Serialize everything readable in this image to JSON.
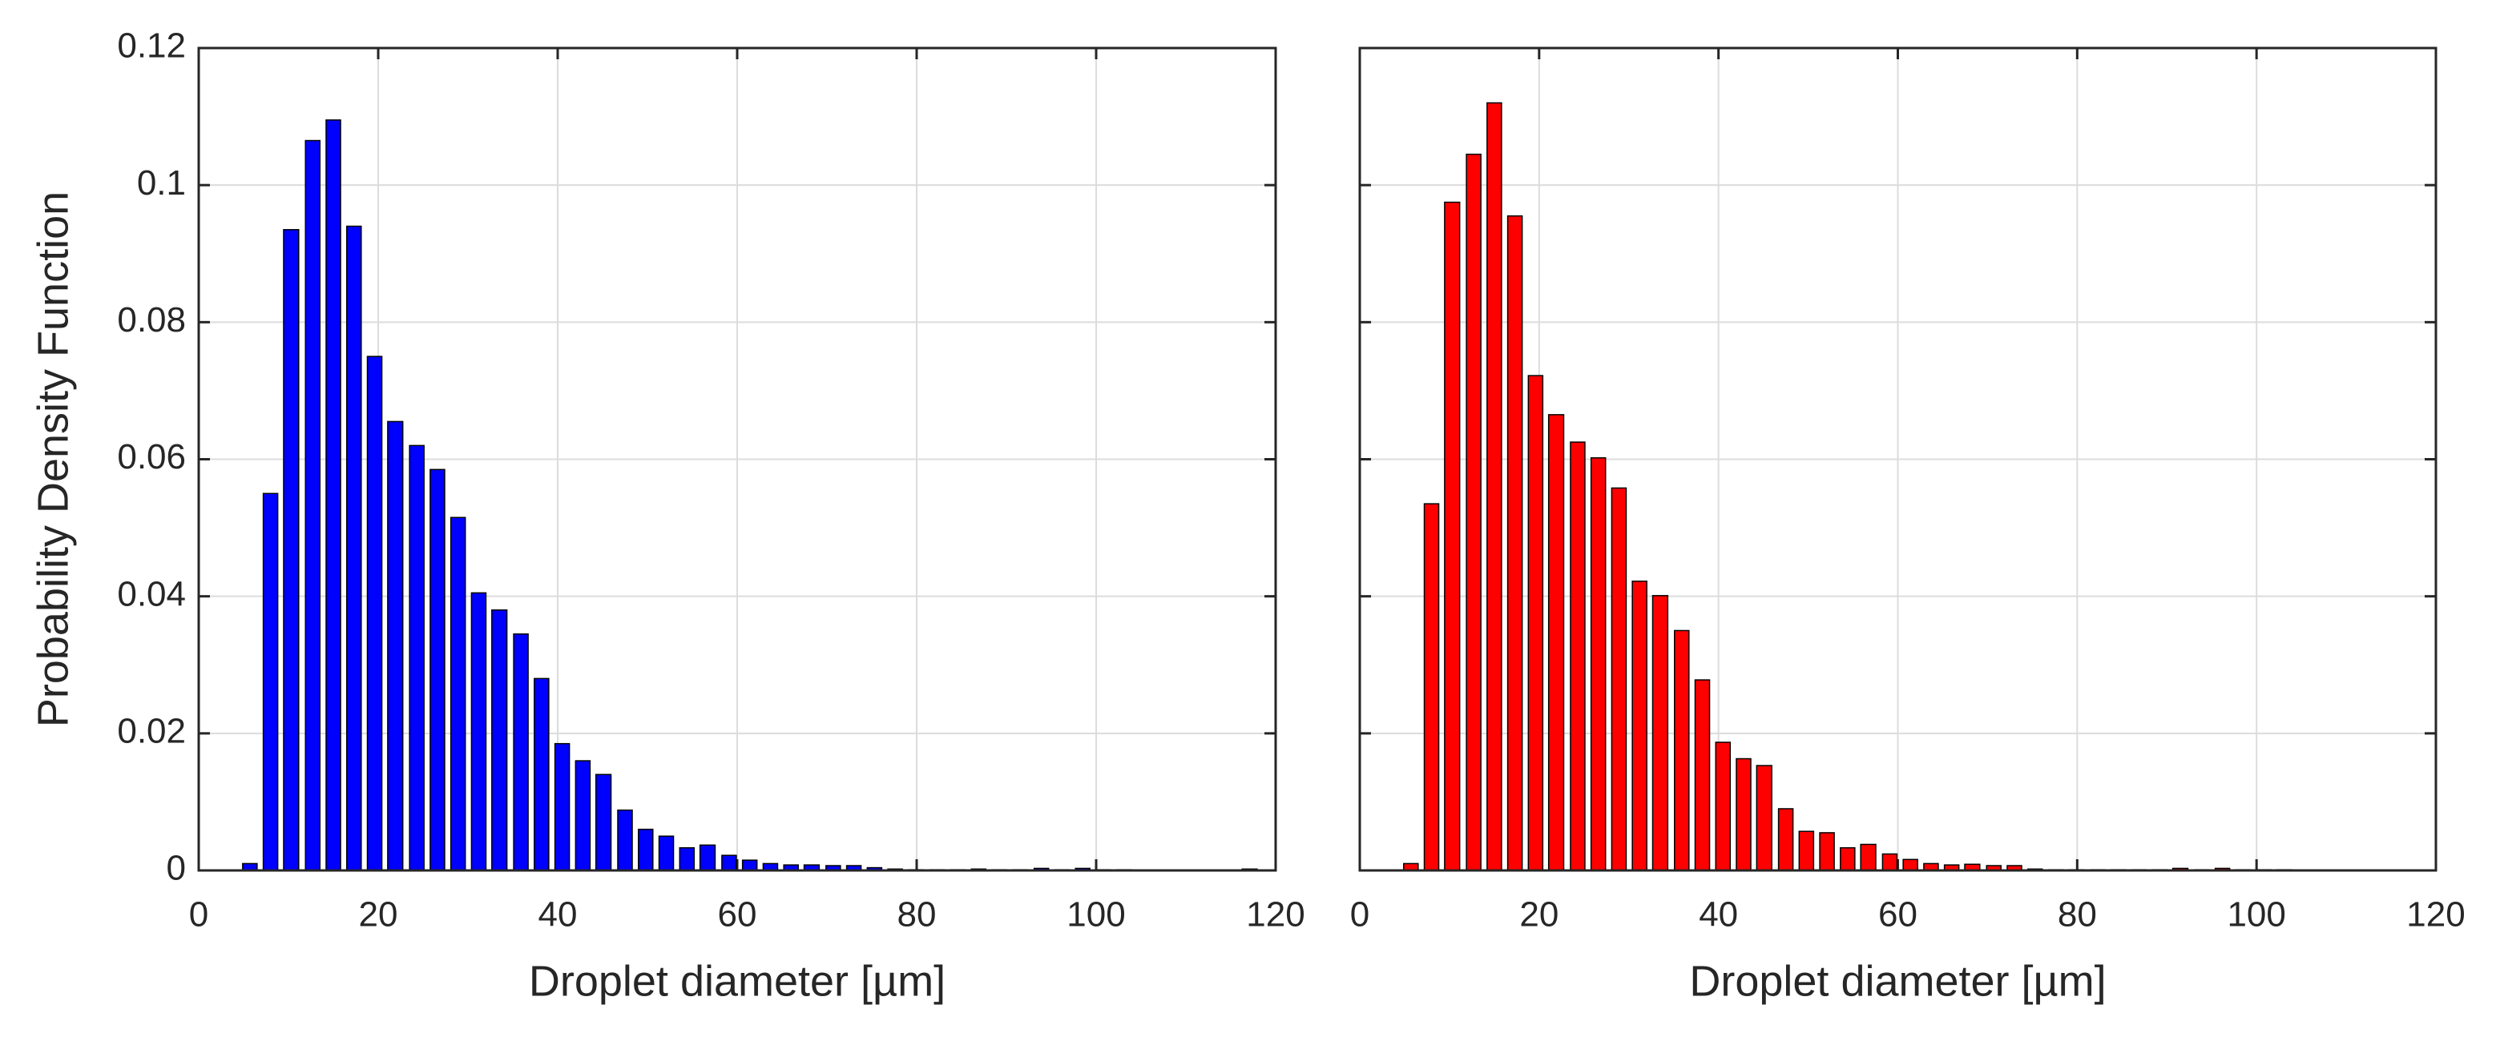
{
  "chart_data": [
    {
      "type": "bar",
      "color": "#0000ff",
      "grid": true,
      "xlabel": "Droplet diameter [µm]",
      "ylabel": "Probability Density Function",
      "xlim": [
        0,
        120
      ],
      "ylim": [
        0,
        0.12
      ],
      "xticks": [
        0,
        20,
        40,
        60,
        80,
        100,
        120
      ],
      "yticks": [
        0,
        0.02,
        0.04,
        0.06,
        0.08,
        0.1,
        0.12
      ],
      "x": [
        5.7,
        8.0,
        10.3,
        12.7,
        15.0,
        17.3,
        19.6,
        21.9,
        24.3,
        26.6,
        28.9,
        31.2,
        33.5,
        35.9,
        38.2,
        40.5,
        42.8,
        45.1,
        47.5,
        49.8,
        52.1,
        54.4,
        56.7,
        59.1,
        61.4,
        63.7,
        66.0,
        68.3,
        70.7,
        73.0,
        75.3,
        77.6,
        79.9,
        82.3,
        84.6,
        86.9,
        89.2,
        91.5,
        93.9,
        96.2,
        98.5,
        100.8,
        103.1,
        105.5,
        107.8,
        110.1,
        112.4,
        114.7,
        117.1
      ],
      "values": [
        0.001,
        0.055,
        0.0935,
        0.1065,
        0.1095,
        0.094,
        0.075,
        0.0655,
        0.062,
        0.0585,
        0.0515,
        0.0405,
        0.038,
        0.0345,
        0.028,
        0.0185,
        0.016,
        0.014,
        0.0088,
        0.006,
        0.005,
        0.0033,
        0.0037,
        0.0022,
        0.0015,
        0.001,
        0.0008,
        0.0008,
        0.0007,
        0.0007,
        0.0004,
        0.0002,
        0.0001,
        0.0001,
        0.0001,
        0.0002,
        0.0001,
        0.0001,
        0.0003,
        0.0001,
        0.0003,
        0.0001,
        0.0001,
        0,
        0,
        0,
        0,
        0,
        0.0002
      ]
    },
    {
      "type": "bar",
      "color": "#ff0000",
      "grid": true,
      "sharey": true,
      "xlabel": "Droplet diameter [µm]",
      "xlim": [
        0,
        120
      ],
      "xticks": [
        0,
        20,
        40,
        60,
        80,
        100,
        120
      ],
      "x": [
        5.7,
        8.0,
        10.3,
        12.7,
        15.0,
        17.3,
        19.6,
        21.9,
        24.3,
        26.6,
        28.9,
        31.2,
        33.5,
        35.9,
        38.2,
        40.5,
        42.8,
        45.1,
        47.5,
        49.8,
        52.1,
        54.4,
        56.7,
        59.1,
        61.4,
        63.7,
        66.0,
        68.3,
        70.7,
        73.0,
        75.3,
        77.6,
        79.9,
        82.3,
        84.6,
        86.9,
        89.2,
        91.5,
        93.9,
        96.2,
        98.5,
        100.8,
        103.1,
        105.5,
        107.8,
        110.1,
        112.4,
        114.7,
        117.1
      ],
      "values": [
        0.001,
        0.0535,
        0.0975,
        0.1045,
        0.112,
        0.0955,
        0.0722,
        0.0665,
        0.0625,
        0.0602,
        0.0558,
        0.0422,
        0.0401,
        0.035,
        0.0278,
        0.0187,
        0.0163,
        0.0153,
        0.009,
        0.0057,
        0.0055,
        0.0033,
        0.0038,
        0.0024,
        0.0016,
        0.001,
        0.0008,
        0.0009,
        0.0007,
        0.0007,
        0.0002,
        0.0001,
        0.0001,
        0.0001,
        0.0001,
        0.0001,
        0.0001,
        0.0003,
        0.0001,
        0.0003,
        0.0001,
        0.0001,
        0.0001,
        0,
        0,
        0,
        0,
        0,
        0
      ]
    }
  ]
}
